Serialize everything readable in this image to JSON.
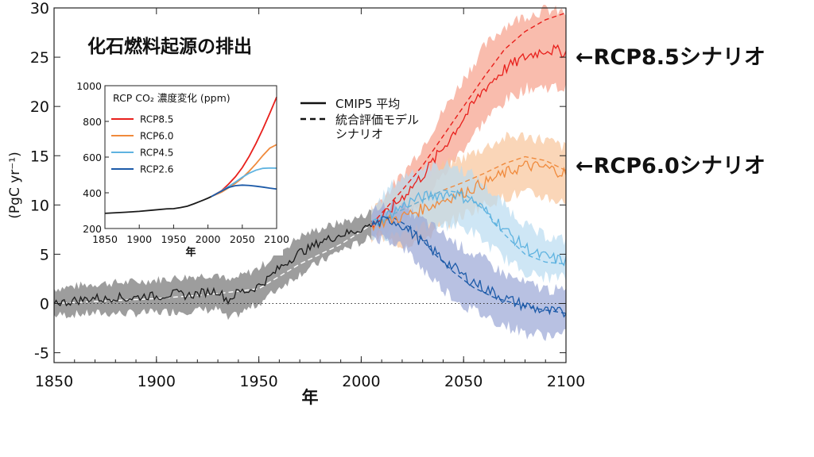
{
  "labels": {
    "rcp85": "←RCP8.5シナリオ",
    "rcp60": "←RCP6.0シナリオ"
  },
  "colors": {
    "historical": "#1a1a1a",
    "historical_band": "#8c8c8c",
    "rcp85": "#e8201c",
    "rcp85_band": "#f7a08a",
    "rcp60": "#f08a3c",
    "rcp60_band": "#f8c49a",
    "rcp45": "#5fb3e0",
    "rcp45_band": "#b9dcf1",
    "rcp26": "#1c5aa8",
    "rcp26_band": "#9aa6d6"
  },
  "chart_data": [
    {
      "type": "line",
      "title": "化石燃料起源の排出",
      "xlabel": "年",
      "ylabel": "(PgC yr⁻¹)",
      "xlim": [
        1850,
        2100
      ],
      "ylim": [
        -6,
        30
      ],
      "xticks": [
        1850,
        1900,
        1950,
        2000,
        2050,
        2100
      ],
      "yticks": [
        -5,
        0,
        5,
        10,
        15,
        20,
        25,
        30
      ],
      "zero_line": "dotted",
      "legend": {
        "placement": "top-center",
        "entries": [
          {
            "style": "solid",
            "label": "CMIP5 平均"
          },
          {
            "style": "dashed",
            "label": "統合評価モデル\nシナリオ"
          }
        ]
      },
      "series": [
        {
          "name": "historical",
          "mean": [
            [
              1850,
              0.2
            ],
            [
              1855,
              0.1
            ],
            [
              1860,
              0.3
            ],
            [
              1865,
              0.4
            ],
            [
              1870,
              0.6
            ],
            [
              1875,
              0.4
            ],
            [
              1880,
              0.7
            ],
            [
              1885,
              0.5
            ],
            [
              1890,
              0.6
            ],
            [
              1895,
              0.8
            ],
            [
              1900,
              0.7
            ],
            [
              1905,
              0.9
            ],
            [
              1910,
              1.0
            ],
            [
              1915,
              0.8
            ],
            [
              1920,
              1.0
            ],
            [
              1925,
              1.2
            ],
            [
              1930,
              1.3
            ],
            [
              1935,
              0.3
            ],
            [
              1940,
              1.2
            ],
            [
              1945,
              1.3
            ],
            [
              1950,
              1.8
            ],
            [
              1955,
              2.6
            ],
            [
              1960,
              3.6
            ],
            [
              1965,
              4.4
            ],
            [
              1970,
              5.2
            ],
            [
              1975,
              5.6
            ],
            [
              1980,
              6.3
            ],
            [
              1985,
              6.6
            ],
            [
              1990,
              7.0
            ],
            [
              1995,
              7.2
            ],
            [
              2000,
              7.6
            ],
            [
              2005,
              8.0
            ]
          ],
          "band": [
            [
              1850,
              -1.2,
              1.5
            ],
            [
              1870,
              -1.0,
              2.0
            ],
            [
              1890,
              -1.0,
              2.2
            ],
            [
              1910,
              -0.8,
              2.6
            ],
            [
              1930,
              -0.6,
              3.0
            ],
            [
              1935,
              -1.6,
              2.2
            ],
            [
              1950,
              0.0,
              3.6
            ],
            [
              1960,
              1.6,
              5.2
            ],
            [
              1970,
              3.0,
              6.8
            ],
            [
              1980,
              4.2,
              7.6
            ],
            [
              1990,
              5.4,
              8.2
            ],
            [
              2000,
              6.2,
              8.8
            ],
            [
              2005,
              6.8,
              9.4
            ]
          ],
          "ipcc": [
            [
              1850,
              0.0
            ],
            [
              1900,
              0.5
            ],
            [
              1930,
              1.0
            ],
            [
              1950,
              1.5
            ],
            [
              1970,
              4.0
            ],
            [
              1990,
              6.0
            ],
            [
              2005,
              8.0
            ]
          ]
        },
        {
          "name": "RCP8.5",
          "mean": [
            [
              2005,
              8.0
            ],
            [
              2010,
              8.6
            ],
            [
              2020,
              10.8
            ],
            [
              2030,
              13.0
            ],
            [
              2040,
              15.8
            ],
            [
              2050,
              18.8
            ],
            [
              2060,
              21.8
            ],
            [
              2070,
              23.8
            ],
            [
              2080,
              25.0
            ],
            [
              2090,
              25.8
            ],
            [
              2100,
              25.5
            ]
          ],
          "band": [
            [
              2005,
              6.8,
              9.4
            ],
            [
              2020,
              8.5,
              13.0
            ],
            [
              2030,
              10.5,
              16.0
            ],
            [
              2040,
              13.0,
              19.5
            ],
            [
              2050,
              15.8,
              22.8
            ],
            [
              2060,
              18.5,
              26.0
            ],
            [
              2070,
              20.5,
              28.2
            ],
            [
              2080,
              21.8,
              29.2
            ],
            [
              2090,
              22.0,
              29.8
            ],
            [
              2100,
              21.8,
              29.5
            ]
          ],
          "ipcc": [
            [
              2005,
              8.0
            ],
            [
              2020,
              11.5
            ],
            [
              2030,
              14.0
            ],
            [
              2040,
              17.0
            ],
            [
              2050,
              20.0
            ],
            [
              2060,
              23.0
            ],
            [
              2070,
              25.8
            ],
            [
              2080,
              27.6
            ],
            [
              2090,
              28.8
            ],
            [
              2100,
              29.5
            ]
          ]
        },
        {
          "name": "RCP6.0",
          "mean": [
            [
              2005,
              8.0
            ],
            [
              2010,
              8.2
            ],
            [
              2020,
              8.8
            ],
            [
              2030,
              9.6
            ],
            [
              2040,
              10.5
            ],
            [
              2050,
              11.3
            ],
            [
              2060,
              12.2
            ],
            [
              2070,
              13.2
            ],
            [
              2080,
              14.0
            ],
            [
              2090,
              13.8
            ],
            [
              2100,
              13.2
            ]
          ],
          "band": [
            [
              2005,
              6.8,
              9.4
            ],
            [
              2020,
              6.0,
              11.8
            ],
            [
              2030,
              6.5,
              13.0
            ],
            [
              2040,
              7.8,
              14.0
            ],
            [
              2050,
              9.0,
              14.8
            ],
            [
              2060,
              10.0,
              15.8
            ],
            [
              2070,
              10.8,
              16.8
            ],
            [
              2080,
              11.2,
              17.0
            ],
            [
              2090,
              10.8,
              16.6
            ],
            [
              2100,
              10.2,
              15.8
            ]
          ],
          "ipcc": [
            [
              2005,
              8.0
            ],
            [
              2020,
              9.5
            ],
            [
              2030,
              10.5
            ],
            [
              2040,
              11.5
            ],
            [
              2050,
              12.3
            ],
            [
              2060,
              13.2
            ],
            [
              2070,
              14.2
            ],
            [
              2080,
              14.9
            ],
            [
              2090,
              14.5
            ],
            [
              2100,
              13.5
            ]
          ]
        },
        {
          "name": "RCP4.5",
          "mean": [
            [
              2005,
              8.0
            ],
            [
              2015,
              9.2
            ],
            [
              2025,
              10.5
            ],
            [
              2035,
              11.0
            ],
            [
              2045,
              11.2
            ],
            [
              2055,
              10.4
            ],
            [
              2065,
              8.6
            ],
            [
              2075,
              6.5
            ],
            [
              2085,
              5.0
            ],
            [
              2095,
              4.5
            ],
            [
              2100,
              4.3
            ]
          ],
          "band": [
            [
              2005,
              6.8,
              9.4
            ],
            [
              2015,
              7.0,
              12.0
            ],
            [
              2025,
              7.5,
              13.5
            ],
            [
              2035,
              7.8,
              14.0
            ],
            [
              2045,
              8.0,
              14.0
            ],
            [
              2055,
              7.2,
              13.0
            ],
            [
              2065,
              5.4,
              11.0
            ],
            [
              2075,
              3.8,
              9.0
            ],
            [
              2085,
              2.8,
              7.2
            ],
            [
              2095,
              2.6,
              6.6
            ],
            [
              2100,
              2.6,
              6.4
            ]
          ],
          "ipcc": [
            [
              2005,
              8.0
            ],
            [
              2020,
              9.5
            ],
            [
              2040,
              11.5
            ],
            [
              2050,
              11.2
            ],
            [
              2060,
              9.5
            ],
            [
              2070,
              7.0
            ],
            [
              2080,
              5.0
            ],
            [
              2090,
              4.2
            ],
            [
              2100,
              4.0
            ]
          ]
        },
        {
          "name": "RCP2.6",
          "mean": [
            [
              2005,
              8.0
            ],
            [
              2015,
              8.5
            ],
            [
              2020,
              8.0
            ],
            [
              2030,
              6.2
            ],
            [
              2040,
              4.5
            ],
            [
              2050,
              2.8
            ],
            [
              2060,
              1.6
            ],
            [
              2070,
              0.5
            ],
            [
              2080,
              -0.2
            ],
            [
              2090,
              -0.8
            ],
            [
              2100,
              -1.0
            ]
          ],
          "band": [
            [
              2005,
              6.8,
              9.4
            ],
            [
              2015,
              6.4,
              10.0
            ],
            [
              2020,
              5.8,
              9.8
            ],
            [
              2030,
              3.5,
              8.5
            ],
            [
              2040,
              1.5,
              7.0
            ],
            [
              2050,
              -0.2,
              5.6
            ],
            [
              2060,
              -1.2,
              4.4
            ],
            [
              2070,
              -2.2,
              3.0
            ],
            [
              2080,
              -3.0,
              2.0
            ],
            [
              2090,
              -3.2,
              1.5
            ],
            [
              2100,
              -3.2,
              1.2
            ]
          ],
          "ipcc": [
            [
              2005,
              8.0
            ],
            [
              2015,
              8.8
            ],
            [
              2025,
              7.6
            ],
            [
              2035,
              5.2
            ],
            [
              2045,
              3.2
            ],
            [
              2055,
              1.6
            ],
            [
              2065,
              0.6
            ],
            [
              2075,
              0.0
            ],
            [
              2085,
              -0.5
            ],
            [
              2100,
              -1.0
            ]
          ]
        }
      ]
    },
    {
      "type": "line",
      "title": "RCP CO₂ 濃度変化 (ppm)",
      "xlabel": "年",
      "ylabel": "",
      "xlim": [
        1850,
        2100
      ],
      "ylim": [
        200,
        1000
      ],
      "xticks": [
        1850,
        1900,
        1950,
        2000,
        2050,
        2100
      ],
      "yticks": [
        200,
        400,
        600,
        800,
        1000
      ],
      "legend": {
        "placement": "top-left"
      },
      "series": [
        {
          "name": "historical",
          "x": [
            1850,
            1880,
            1900,
            1920,
            1940,
            1950,
            1960,
            1970,
            1980,
            1990,
            2000,
            2005
          ],
          "values": [
            285,
            291,
            296,
            303,
            310,
            311,
            317,
            325,
            339,
            354,
            370,
            379
          ]
        },
        {
          "name": "RCP8.5",
          "x": [
            2005,
            2020,
            2030,
            2040,
            2050,
            2060,
            2070,
            2080,
            2090,
            2100
          ],
          "values": [
            379,
            412,
            449,
            490,
            541,
            604,
            677,
            758,
            845,
            936
          ]
        },
        {
          "name": "RCP6.0",
          "x": [
            2005,
            2020,
            2030,
            2040,
            2050,
            2060,
            2070,
            2080,
            2090,
            2100
          ],
          "values": [
            379,
            404,
            428,
            453,
            483,
            521,
            563,
            609,
            650,
            670
          ]
        },
        {
          "name": "RCP4.5",
          "x": [
            2005,
            2020,
            2030,
            2040,
            2050,
            2060,
            2070,
            2080,
            2090,
            2100
          ],
          "values": [
            379,
            411,
            435,
            460,
            487,
            510,
            527,
            537,
            539,
            538
          ]
        },
        {
          "name": "RCP2.6",
          "x": [
            2005,
            2020,
            2030,
            2040,
            2050,
            2060,
            2070,
            2080,
            2090,
            2100
          ],
          "values": [
            379,
            410,
            430,
            440,
            443,
            441,
            437,
            432,
            426,
            421
          ]
        }
      ]
    }
  ]
}
